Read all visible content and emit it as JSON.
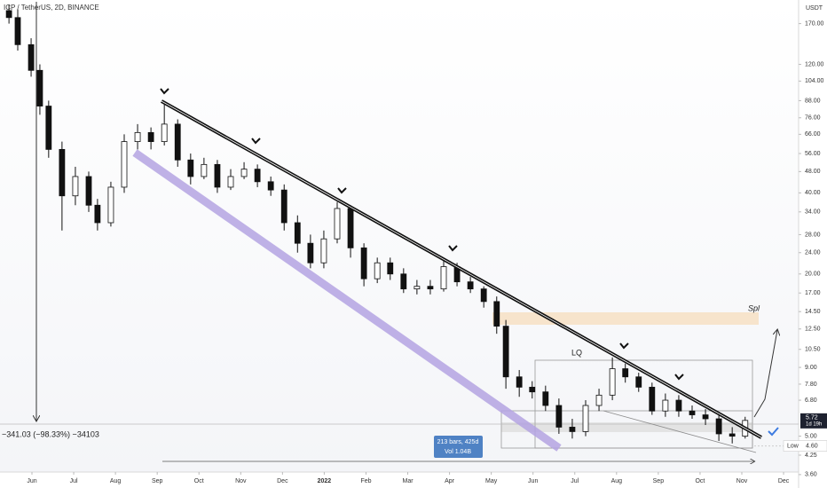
{
  "chart_data": {
    "type": "candlestick",
    "title": "ICP / TetherUS, 2D, BINANCE",
    "currency": "USDT",
    "log_scale": true,
    "grid": false,
    "up_color": "#ffffff",
    "down_color": "#111111",
    "x": [
      -0.55,
      -0.34,
      -0.02,
      0.19,
      0.4,
      0.72,
      1.04,
      1.36,
      1.57,
      1.89,
      2.21,
      2.53,
      2.85,
      3.17,
      3.49,
      3.8,
      4.12,
      4.44,
      4.76,
      5.08,
      5.4,
      5.72,
      6.04,
      6.36,
      6.67,
      6.99,
      7.31,
      7.63,
      7.95,
      8.27,
      8.58,
      8.9,
      9.22,
      9.54,
      9.86,
      10.18,
      10.5,
      10.82,
      11.13,
      11.35,
      11.67,
      11.98,
      12.3,
      12.62,
      12.94,
      13.26,
      13.58,
      13.9,
      14.21,
      14.53,
      14.85,
      15.17,
      15.49,
      15.81,
      16.13,
      16.45,
      16.77,
      17.08
    ],
    "open": [
      190,
      179,
      142,
      114,
      84,
      58,
      39,
      46,
      36,
      31,
      42,
      62,
      67,
      62,
      72,
      53,
      46,
      51,
      42,
      46,
      49,
      44,
      41,
      31,
      26,
      22,
      27,
      35,
      25,
      19.2,
      22,
      20,
      17.6,
      18,
      17.6,
      21.3,
      18.7,
      17.6,
      15.8,
      12.8,
      8.3,
      7.6,
      7.3,
      6.5,
      5.4,
      5.2,
      6.5,
      7.1,
      8.9,
      8.3,
      7.6,
      6.2,
      6.8,
      6.2,
      6.0,
      5.8,
      5.1,
      5.0
    ],
    "high": [
      200,
      192,
      150,
      120,
      88,
      62,
      50,
      48,
      38,
      44,
      66,
      72,
      70,
      85,
      75,
      56,
      54,
      53,
      49,
      52,
      51,
      46,
      43,
      33,
      28,
      29,
      37,
      36,
      26,
      23,
      23,
      21,
      19,
      19,
      22.5,
      22,
      19.5,
      18,
      16.5,
      13.5,
      8.8,
      8,
      7.7,
      6.9,
      5.8,
      6.8,
      7.5,
      9.8,
      9.3,
      8.6,
      7.9,
      7.2,
      7.1,
      6.5,
      6.3,
      6,
      5.4,
      5.9
    ],
    "low": [
      170,
      135,
      108,
      78,
      54,
      29,
      36,
      34,
      29,
      30,
      40,
      58,
      58,
      60,
      50,
      43,
      45,
      40,
      41,
      45,
      42,
      39,
      29,
      24,
      21,
      21,
      26,
      23,
      18,
      18.5,
      19,
      17,
      16.8,
      16.8,
      17.2,
      18,
      17,
      15,
      12,
      7.5,
      7,
      6.9,
      6.2,
      5.1,
      4.9,
      5,
      6.2,
      6.8,
      7.9,
      7.3,
      6,
      5.9,
      5.9,
      5.8,
      5.5,
      4.8,
      4.7,
      4.9
    ],
    "close": [
      179,
      142,
      114,
      84,
      58,
      39,
      46,
      36,
      31,
      42,
      62,
      67,
      62,
      72,
      53,
      46,
      51,
      42,
      46,
      49,
      44,
      41,
      31,
      26,
      22,
      27,
      35,
      25,
      19.2,
      22,
      20,
      17.6,
      18,
      17.6,
      21.3,
      18.7,
      17.6,
      15.8,
      12.8,
      8.3,
      7.6,
      7.3,
      6.5,
      5.4,
      5.2,
      6.5,
      7.1,
      8.9,
      8.3,
      7.6,
      6.2,
      6.8,
      6.2,
      6.0,
      5.8,
      5.1,
      5.0,
      5.72
    ],
    "xlim": [
      -0.765,
      18.36
    ],
    "xticks": [
      {
        "value": 0,
        "label": "Jun"
      },
      {
        "value": 1,
        "label": "Jul"
      },
      {
        "value": 2,
        "label": "Aug"
      },
      {
        "value": 3,
        "label": "Sep"
      },
      {
        "value": 4,
        "label": "Oct"
      },
      {
        "value": 5,
        "label": "Nov"
      },
      {
        "value": 6,
        "label": "Dec"
      },
      {
        "value": 7,
        "label": "2022"
      },
      {
        "value": 8,
        "label": "Feb"
      },
      {
        "value": 9,
        "label": "Mar"
      },
      {
        "value": 10,
        "label": "Apr"
      },
      {
        "value": 11,
        "label": "May"
      },
      {
        "value": 12,
        "label": "Jun"
      },
      {
        "value": 13,
        "label": "Jul"
      },
      {
        "value": 14,
        "label": "Aug"
      },
      {
        "value": 15,
        "label": "Sep"
      },
      {
        "value": 16,
        "label": "Oct"
      },
      {
        "value": 17,
        "label": "Nov"
      },
      {
        "value": 18,
        "label": "Dec"
      }
    ],
    "ylim": [
      3.68,
      208
    ],
    "yticks": [
      {
        "value": 170,
        "label": "170.00"
      },
      {
        "value": 120,
        "label": "120.00"
      },
      {
        "value": 104,
        "label": "104.00"
      },
      {
        "value": 88,
        "label": "88.00"
      },
      {
        "value": 76,
        "label": "76.00"
      },
      {
        "value": 66,
        "label": "66.00"
      },
      {
        "value": 56,
        "label": "56.00"
      },
      {
        "value": 48,
        "label": "48.00"
      },
      {
        "value": 40,
        "label": "40.00"
      },
      {
        "value": 34,
        "label": "34.00"
      },
      {
        "value": 28,
        "label": "28.00"
      },
      {
        "value": 24,
        "label": "24.00"
      },
      {
        "value": 20,
        "label": "20.00"
      },
      {
        "value": 17,
        "label": "17.00"
      },
      {
        "value": 14.5,
        "label": "14.50"
      },
      {
        "value": 12.5,
        "label": "12.50"
      },
      {
        "value": 10.5,
        "label": "10.50"
      },
      {
        "value": 9,
        "label": "9.00"
      },
      {
        "value": 7.8,
        "label": "7.80"
      },
      {
        "value": 6.8,
        "label": "6.80"
      },
      {
        "value": 5,
        "label": "5.00"
      },
      {
        "value": 4.25,
        "label": "4.25"
      },
      {
        "value": 3.6,
        "label": "3.60"
      }
    ],
    "last_price": 5.72,
    "last_price_countdown": "1d 19h",
    "low_label": "Low",
    "low_price": {
      "value": 4.6,
      "label": "4.60"
    },
    "annotations": {
      "measure": "−341.03 (−98.33%) −34103",
      "bars": "213 bars, 425d",
      "volume": "Vol 1.04B",
      "lq": "LQ",
      "spl": "Spl"
    }
  }
}
